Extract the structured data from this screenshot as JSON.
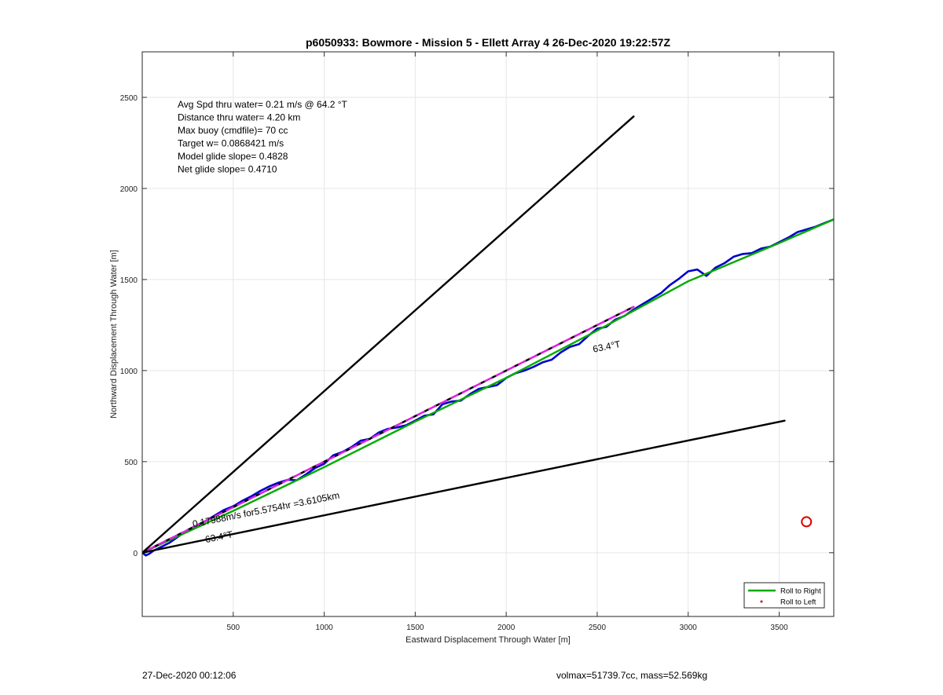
{
  "chart_data": {
    "type": "line",
    "title": "p6050933: Bowmore - Mission 5 - Ellett Array 4 26-Dec-2020 19:22:57Z",
    "xlabel": "Eastward Displacement Through Water [m]",
    "ylabel": "Northward Displacement Through Water [m]",
    "xlim": [
      0,
      3800
    ],
    "ylim": [
      -350,
      2750
    ],
    "xticks": [
      500,
      1000,
      1500,
      2000,
      2500,
      3000,
      3500
    ],
    "yticks": [
      0,
      500,
      1000,
      1500,
      2000,
      2500
    ],
    "grid": true,
    "info_lines": [
      "Avg Spd thru water=  0.21 m/s @  64.2 °T",
      "Distance thru water=  4.20 km",
      "Max buoy (cmdfile)= 70 cc",
      "Target w= 0.0868421 m/s",
      "Model glide slope= 0.4828",
      "Net glide slope= 0.4710"
    ],
    "annotations": [
      {
        "text": "0.17988m/s for5.5754hr =3.6105km",
        "x": 280,
        "y": 140,
        "angle_deg": 63.4
      },
      {
        "text": "63.4°T",
        "x": 350,
        "y": 55,
        "angle_deg": 63.4
      },
      {
        "text": "63.4°T",
        "x": 2480,
        "y": 1100,
        "angle_deg": 63.4
      }
    ],
    "series": [
      {
        "name": "",
        "color": "#0000cc",
        "style": "solid",
        "x": [
          0,
          20,
          40,
          60,
          100,
          150,
          200,
          250,
          300,
          350,
          400,
          450,
          500,
          550,
          600,
          650,
          700,
          750,
          800,
          850,
          900,
          950,
          1000,
          1050,
          1100,
          1150,
          1200,
          1250,
          1300,
          1350,
          1400,
          1450,
          1500,
          1550,
          1600,
          1650,
          1700,
          1750,
          1800,
          1850,
          1900,
          1950,
          2000,
          2050,
          2100,
          2150,
          2200,
          2250,
          2300,
          2350,
          2400,
          2450,
          2500,
          2550,
          2600,
          2650,
          2700,
          2750,
          2800,
          2850,
          2900,
          2950,
          3000,
          3050,
          3100,
          3150,
          3200,
          3250,
          3300,
          3350,
          3400,
          3450,
          3500,
          3550,
          3600,
          3650,
          3700,
          3750,
          3800
        ],
        "y": [
          0,
          -15,
          -5,
          10,
          30,
          55,
          90,
          125,
          150,
          175,
          205,
          235,
          255,
          285,
          310,
          340,
          365,
          385,
          400,
          398,
          430,
          465,
          488,
          535,
          553,
          580,
          615,
          625,
          660,
          680,
          688,
          700,
          725,
          752,
          760,
          815,
          830,
          835,
          870,
          900,
          910,
          920,
          960,
          985,
          1000,
          1020,
          1045,
          1060,
          1100,
          1130,
          1145,
          1190,
          1230,
          1240,
          1280,
          1300,
          1335,
          1365,
          1395,
          1425,
          1470,
          1505,
          1545,
          1555,
          1520,
          1565,
          1590,
          1625,
          1640,
          1645,
          1670,
          1680,
          1705,
          1730,
          1760,
          1775,
          1790,
          1810,
          1830
        ]
      },
      {
        "name": "",
        "color": "#00aa00",
        "style": "solid",
        "x": [
          0,
          500,
          1000,
          1500,
          2000,
          2500,
          3000,
          3500,
          3800
        ],
        "y": [
          0,
          230,
          470,
          720,
          960,
          1220,
          1490,
          1700,
          1830
        ]
      },
      {
        "name": "",
        "color": "#000000",
        "style": "dashed",
        "x": [
          0,
          2700
        ],
        "y": [
          0,
          1350
        ]
      },
      {
        "name": "",
        "color": "#dd22dd",
        "style": "dashed",
        "x": [
          0,
          2700
        ],
        "y": [
          0,
          1350
        ]
      },
      {
        "name": "",
        "color": "#000000",
        "style": "solid",
        "x": [
          0,
          2700
        ],
        "y": [
          0,
          2395
        ]
      },
      {
        "name": "",
        "color": "#000000",
        "style": "solid",
        "x": [
          0,
          3530
        ],
        "y": [
          0,
          725
        ]
      }
    ],
    "marker": {
      "x": 3650,
      "y": 170,
      "color": "#dd0000"
    },
    "legend": {
      "position": "bottom-right",
      "entries": [
        {
          "label": "Roll to Right",
          "color": "#00aa00",
          "kind": "line"
        },
        {
          "label": "Roll to Left",
          "color": "#dd0000",
          "kind": "dot"
        }
      ]
    }
  },
  "footer": {
    "timestamp": "27-Dec-2020 00:12:06",
    "stats": "volmax=51739.7cc, mass=52.569kg"
  }
}
